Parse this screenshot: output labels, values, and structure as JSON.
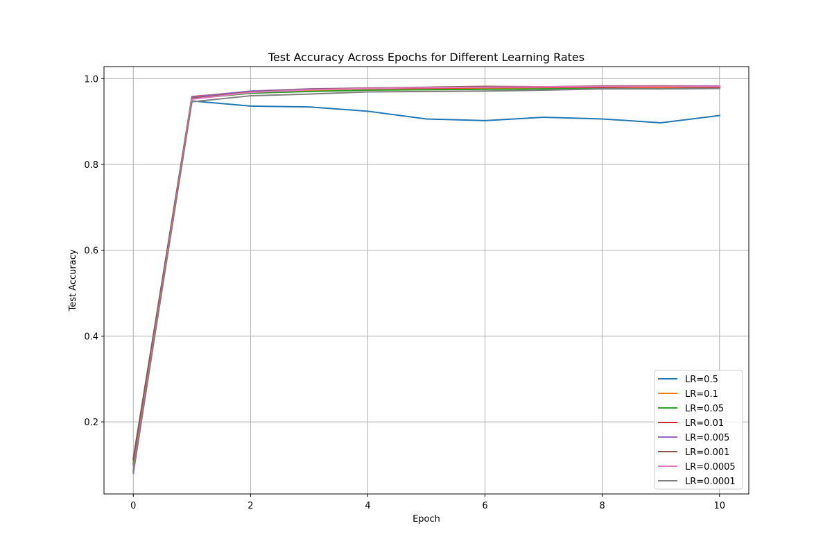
{
  "chart_data": {
    "type": "line",
    "title": "Test Accuracy Across Epochs for Different Learning Rates",
    "xlabel": "Epoch",
    "ylabel": "Test Accuracy",
    "xlim": [
      -0.5,
      10.5
    ],
    "ylim": [
      0.032,
      1.028
    ],
    "xticks": [
      0,
      2,
      4,
      6,
      8,
      10
    ],
    "yticks": [
      0.2,
      0.4,
      0.6,
      0.8,
      1.0
    ],
    "xtick_labels": [
      "0",
      "2",
      "4",
      "6",
      "8",
      "10"
    ],
    "ytick_labels": [
      "0.2",
      "0.4",
      "0.6",
      "0.8",
      "1.0"
    ],
    "grid": true,
    "legend_position": "lower-right",
    "x": [
      0,
      1,
      2,
      3,
      4,
      5,
      6,
      7,
      8,
      9,
      10
    ],
    "series": [
      {
        "name": "LR=0.5",
        "color": "#1f77b4",
        "values": [
          0.098,
          0.948,
          0.936,
          0.934,
          0.924,
          0.906,
          0.902,
          0.91,
          0.906,
          0.897,
          0.914
        ]
      },
      {
        "name": "LR=0.1",
        "color": "#ff7f0e",
        "values": [
          0.105,
          0.955,
          0.968,
          0.972,
          0.974,
          0.975,
          0.976,
          0.977,
          0.977,
          0.978,
          0.977
        ]
      },
      {
        "name": "LR=0.05",
        "color": "#2ca02c",
        "values": [
          0.102,
          0.953,
          0.966,
          0.97,
          0.973,
          0.974,
          0.975,
          0.976,
          0.977,
          0.976,
          0.978
        ]
      },
      {
        "name": "LR=0.01",
        "color": "#d62728",
        "values": [
          0.112,
          0.958,
          0.97,
          0.975,
          0.977,
          0.978,
          0.979,
          0.98,
          0.98,
          0.981,
          0.98
        ]
      },
      {
        "name": "LR=0.005",
        "color": "#9467bd",
        "values": [
          0.08,
          0.957,
          0.971,
          0.976,
          0.978,
          0.979,
          0.98,
          0.981,
          0.982,
          0.983,
          0.983
        ]
      },
      {
        "name": "LR=0.001",
        "color": "#8c564b",
        "values": [
          0.115,
          0.954,
          0.969,
          0.975,
          0.978,
          0.98,
          0.982,
          0.981,
          0.983,
          0.983,
          0.982
        ]
      },
      {
        "name": "LR=0.0005",
        "color": "#e377c2",
        "values": [
          0.09,
          0.952,
          0.968,
          0.974,
          0.977,
          0.979,
          0.98,
          0.981,
          0.982,
          0.982,
          0.982
        ]
      },
      {
        "name": "LR=0.0001",
        "color": "#7f7f7f",
        "values": [
          0.085,
          0.946,
          0.96,
          0.964,
          0.969,
          0.97,
          0.971,
          0.973,
          0.976,
          0.976,
          0.977
        ]
      }
    ]
  }
}
